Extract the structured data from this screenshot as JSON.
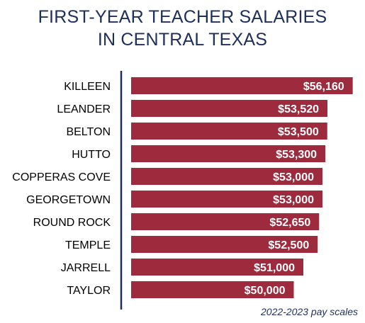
{
  "header": {
    "title_line1": "FIRST-YEAR TEACHER SALARIES",
    "title_line2": "IN CENTRAL TEXAS"
  },
  "footnote": "2022-2023 pay scales",
  "colors": {
    "bar": "#9e2a3e",
    "axis": "#1f2f5c",
    "title": "#1f2f5c",
    "label": "#000000",
    "value_text": "#ffffff"
  },
  "chart_data": {
    "type": "bar",
    "orientation": "horizontal",
    "title": "FIRST-YEAR TEACHER SALARIES IN CENTRAL TEXAS",
    "categories": [
      "KILLEEN",
      "LEANDER",
      "BELTON",
      "HUTTO",
      "COPPERAS COVE",
      "GEORGETOWN",
      "ROUND ROCK",
      "TEMPLE",
      "JARRELL",
      "TAYLOR"
    ],
    "values": [
      56160,
      53520,
      53500,
      53300,
      53000,
      53000,
      52650,
      52500,
      51000,
      50000
    ],
    "value_labels": [
      "$56,160",
      "$53,520",
      "$53,500",
      "$53,300",
      "$53,000",
      "$53,000",
      "$52,650",
      "$52,500",
      "$51,000",
      "$50,000"
    ],
    "xlim": [
      33000,
      57000
    ],
    "axis_visible": false,
    "grid": false,
    "legend": "none"
  }
}
